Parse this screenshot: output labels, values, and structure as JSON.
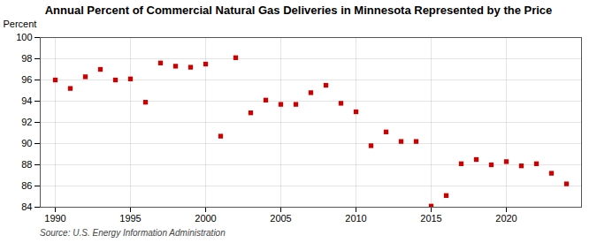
{
  "chart_data": {
    "type": "scatter",
    "title": "Annual Percent of Commercial Natural Gas Deliveries in Minnesota Represented by the Price",
    "ylabel": "Percent",
    "source": "Source: U.S. Energy Information Administration",
    "x": [
      1990,
      1991,
      1992,
      1993,
      1994,
      1995,
      1996,
      1997,
      1998,
      1999,
      2000,
      2001,
      2002,
      2003,
      2004,
      2005,
      2006,
      2007,
      2008,
      2009,
      2010,
      2011,
      2012,
      2013,
      2014,
      2015,
      2016,
      2017,
      2018,
      2019,
      2020,
      2021,
      2022,
      2023,
      2024
    ],
    "values": [
      96.0,
      95.2,
      96.3,
      97.0,
      96.0,
      96.1,
      93.9,
      97.6,
      97.3,
      97.2,
      97.5,
      90.7,
      98.1,
      92.9,
      94.1,
      93.7,
      93.7,
      94.8,
      95.5,
      93.8,
      93.0,
      89.8,
      91.1,
      90.2,
      90.2,
      84.1,
      85.1,
      88.1,
      88.5,
      88.0,
      88.3,
      87.9,
      88.1,
      87.2,
      86.2
    ],
    "color": "#cc0000",
    "marker": "square",
    "xlim": [
      1989,
      2025
    ],
    "ylim": [
      84,
      100
    ],
    "xticks": [
      1990,
      1995,
      2000,
      2005,
      2010,
      2015,
      2020
    ],
    "yticks": [
      84,
      86,
      88,
      90,
      92,
      94,
      96,
      98,
      100
    ],
    "grid": true
  }
}
